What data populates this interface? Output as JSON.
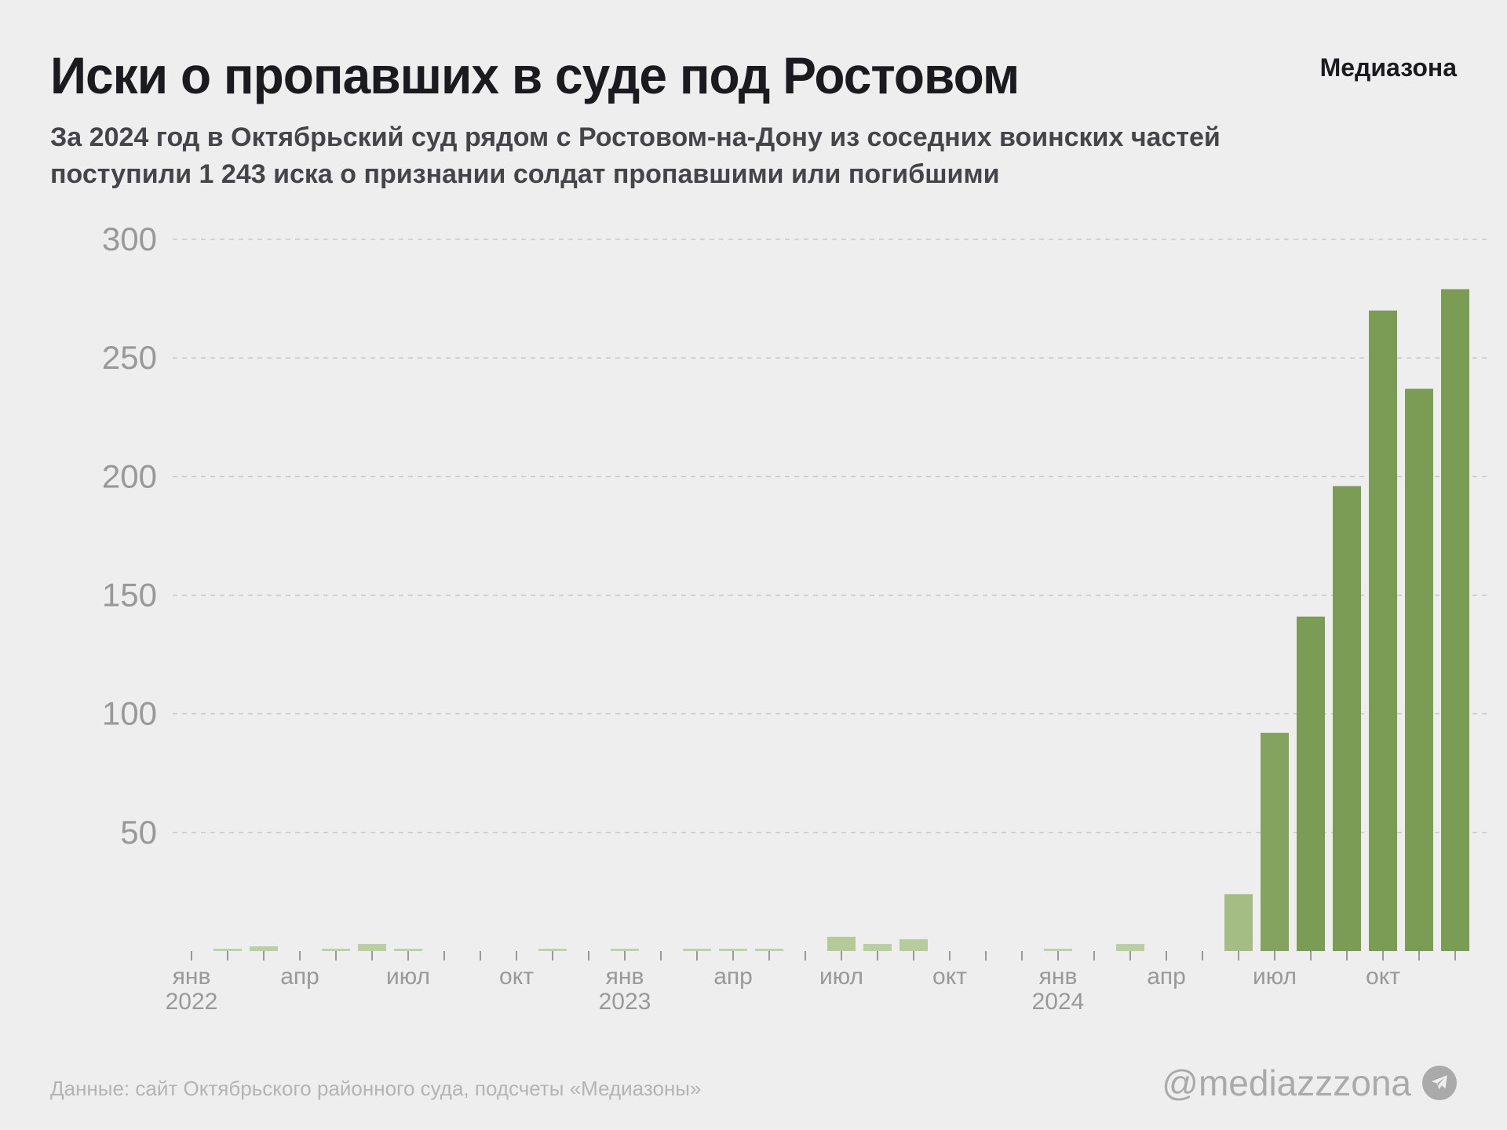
{
  "header": {
    "title": "Иски о пропавших в суде под Ростовом",
    "brand": "Медиазона",
    "subtitle_lines": [
      "За 2024 год в Октябрьский суд рядом с Ростовом-на-Дону из соседних воинских частей",
      "поступили 1 243 иска о признании солдат пропавшими или погибшими"
    ]
  },
  "footer": {
    "source": "Данные: сайт Октябрьского районного суда, подсчеты «Медиазоны»",
    "handle": "@mediazzzona",
    "handle_icon": "telegram-icon"
  },
  "colors": {
    "background": "#eeeeee",
    "bar_light": "#c5d8ad",
    "bar_dark": "#7a9c54",
    "grid": "#c8c8c8",
    "axis_text": "#999999"
  },
  "chart_data": {
    "type": "bar",
    "title": "Иски о пропавших в суде под Ростовом",
    "xlabel": "",
    "ylabel": "",
    "ylim": [
      0,
      300
    ],
    "yticks": [
      50,
      100,
      150,
      200,
      250,
      300
    ],
    "grid": true,
    "x": [
      "2022-01",
      "2022-02",
      "2022-03",
      "2022-04",
      "2022-05",
      "2022-06",
      "2022-07",
      "2022-08",
      "2022-09",
      "2022-10",
      "2022-11",
      "2022-12",
      "2023-01",
      "2023-02",
      "2023-03",
      "2023-04",
      "2023-05",
      "2023-06",
      "2023-07",
      "2023-08",
      "2023-09",
      "2023-10",
      "2023-11",
      "2023-12",
      "2024-01",
      "2024-02",
      "2024-03",
      "2024-04",
      "2024-05",
      "2024-06",
      "2024-07",
      "2024-08",
      "2024-09",
      "2024-10",
      "2024-11",
      "2024-12"
    ],
    "values": [
      0,
      1,
      2,
      0,
      1,
      3,
      1,
      0,
      0,
      0,
      1,
      0,
      1,
      0,
      1,
      1,
      1,
      0,
      6,
      3,
      5,
      0,
      0,
      0,
      1,
      0,
      3,
      0,
      0,
      24,
      92,
      141,
      196,
      270,
      237,
      279
    ],
    "x_tick_labels": [
      {
        "month_index": 0,
        "label": "янв",
        "year": "2022"
      },
      {
        "month_index": 3,
        "label": "апр"
      },
      {
        "month_index": 6,
        "label": "июл"
      },
      {
        "month_index": 9,
        "label": "окт"
      },
      {
        "month_index": 12,
        "label": "янв",
        "year": "2023"
      },
      {
        "month_index": 15,
        "label": "апр"
      },
      {
        "month_index": 18,
        "label": "июл"
      },
      {
        "month_index": 21,
        "label": "окт"
      },
      {
        "month_index": 24,
        "label": "янв",
        "year": "2024"
      },
      {
        "month_index": 27,
        "label": "апр"
      },
      {
        "month_index": 30,
        "label": "июл"
      },
      {
        "month_index": 33,
        "label": "окт"
      }
    ]
  }
}
